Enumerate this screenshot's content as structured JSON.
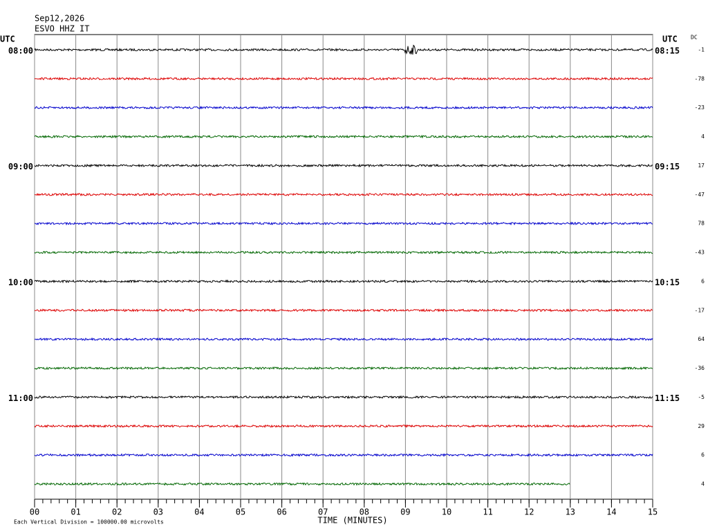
{
  "chart_data": {
    "type": "helicorder",
    "date": "Sep12,2026",
    "station": "ESVO HHZ IT",
    "left_tz": "UTC",
    "right_tz": "UTC",
    "dc_header": "DC",
    "xlabel": "TIME (MINUTES)",
    "footnote": "Each Vertical Division = 100000.00 microvolts",
    "xlim": [
      0,
      15
    ],
    "xticks": [
      {
        "value": 0,
        "label": "00"
      },
      {
        "value": 1,
        "label": "01"
      },
      {
        "value": 2,
        "label": "02"
      },
      {
        "value": 3,
        "label": "03"
      },
      {
        "value": 4,
        "label": "04"
      },
      {
        "value": 5,
        "label": "05"
      },
      {
        "value": 6,
        "label": "06"
      },
      {
        "value": 7,
        "label": "07"
      },
      {
        "value": 8,
        "label": "08"
      },
      {
        "value": 9,
        "label": "09"
      },
      {
        "value": 10,
        "label": "10"
      },
      {
        "value": 11,
        "label": "11"
      },
      {
        "value": 12,
        "label": "12"
      },
      {
        "value": 13,
        "label": "13"
      },
      {
        "value": 14,
        "label": "14"
      },
      {
        "value": 15,
        "label": "15"
      }
    ],
    "left_labels": [
      "08:00",
      null,
      null,
      null,
      "09:00",
      null,
      null,
      null,
      "10:00",
      null,
      null,
      null,
      "11:00",
      null,
      null,
      null
    ],
    "right_labels": [
      "08:15",
      null,
      null,
      null,
      "09:15",
      null,
      null,
      null,
      "10:15",
      null,
      null,
      null,
      "11:15",
      null,
      null,
      null
    ],
    "traces": [
      {
        "color": "#000000",
        "dc": -1,
        "end": 15
      },
      {
        "color": "#dd0000",
        "dc": -78,
        "end": 15
      },
      {
        "color": "#0000cc",
        "dc": -23,
        "end": 15
      },
      {
        "color": "#006600",
        "dc": 4,
        "end": 15
      },
      {
        "color": "#000000",
        "dc": 17,
        "end": 15
      },
      {
        "color": "#dd0000",
        "dc": -47,
        "end": 15
      },
      {
        "color": "#0000cc",
        "dc": 78,
        "end": 15
      },
      {
        "color": "#006600",
        "dc": -43,
        "end": 15
      },
      {
        "color": "#000000",
        "dc": 6,
        "end": 15
      },
      {
        "color": "#dd0000",
        "dc": -17,
        "end": 15
      },
      {
        "color": "#0000cc",
        "dc": 64,
        "end": 15
      },
      {
        "color": "#006600",
        "dc": -36,
        "end": 15
      },
      {
        "color": "#000000",
        "dc": -5,
        "end": 15
      },
      {
        "color": "#dd0000",
        "dc": 29,
        "end": 15
      },
      {
        "color": "#0000cc",
        "dc": 6,
        "end": 15
      },
      {
        "color": "#006600",
        "dc": 4,
        "end": 13
      }
    ]
  }
}
